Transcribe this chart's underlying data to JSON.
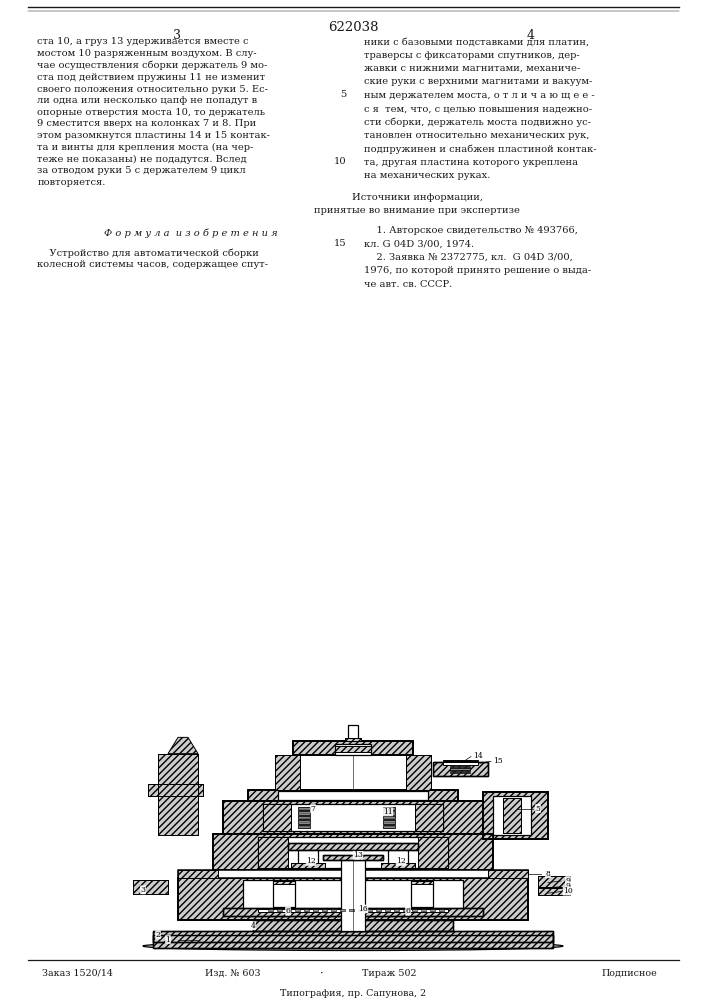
{
  "patent_number": "622038",
  "page_left": "3",
  "page_right": "4",
  "background_color": "#ffffff",
  "text_color": "#1a1a1a",
  "figsize": [
    7.07,
    10.0
  ],
  "dpi": 100,
  "left_col_text": "ста 10, а груз 13 удерживается вместе с\nмостом 10 разряженным воздухом. В слу-\nчае осуществления сборки держатель 9 мо-\nста под действием пружины 11 не изменит\nсвоего положения относительно руки 5. Ес-\nли одна или несколько цапф не попадут в\nопорные отверстия моста 10, то держатель\n9 сместится вверх на колонках 7 и 8. При\nэтом разомкнутся пластины 14 и 15 контак-\nта и винты для крепления моста (на чер-\nтеже не показаны) не подадутся. Вслед\nза отводом руки 5 с держателем 9 цикл\nповторяется.",
  "formula_header": "Ф о р м у л а  и з о б р е т е н и я",
  "formula_body": "    Устройство для автоматической сборки\nколесной системы часов, содержащее спут-",
  "right_col_lines": [
    "ники с базовыми подставками для платин,",
    "траверсы с фиксаторами спутников, дер-",
    "жавки с нижними магнитами, механиче-",
    "ские руки с верхними магнитами и вакуум-",
    "ным держателем моста, о т л и ч а ю щ е е -",
    "с я  тем, что, с целью повышения надежно-",
    "сти сборки, держатель моста подвижно ус-",
    "тановлен относительно механических рук,",
    "подпружинен и снабжен пластиной контак-",
    "та, другая пластина которого укреплена",
    "на механических руках."
  ],
  "right_line_nums": {
    "4": "5",
    "9": "10"
  },
  "sources_header1": "Источники информации,",
  "sources_header2": "принятые во внимание при экспертизе",
  "sources_lines": [
    "    1. Авторское свидетельство № 493766,",
    "кл. G 04D 3/00, 1974.",
    "    2. Заявка № 2372775, кл.  G 04D 3/00,",
    "1976, по которой принято решение о выда-",
    "че авт. св. СССР."
  ],
  "sources_line_num_idx": 1,
  "sources_line_num_val": "15",
  "footer_items": [
    "Заказ 1520/14",
    "Изд. № 603",
    "Тираж 502",
    "Подписное"
  ],
  "footer_bottom": "Типография, пр. Сапунова, 2"
}
